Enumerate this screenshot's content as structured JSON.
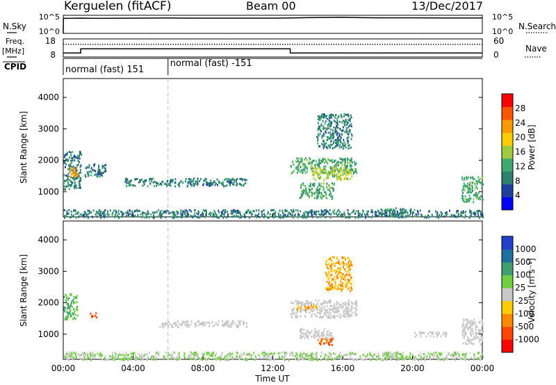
{
  "header": {
    "station": "Kerguelen (fitACF)",
    "beam": "Beam 00",
    "date": "13/Dec/2017"
  },
  "nsky_panel": {
    "left_label": "N.Sky",
    "right_label": "N.Search",
    "left_ticks": [
      "10^5",
      "10^0"
    ],
    "right_ticks": [
      "10^5",
      "10^0"
    ],
    "series": [
      {
        "key": "nsky_solid",
        "x": [
          0,
          0.01,
          0.02,
          0.03,
          0.2,
          1,
          2,
          4,
          6,
          8,
          10,
          12,
          13,
          14,
          15,
          16,
          17,
          18,
          20,
          22,
          24
        ],
        "y": [
          0,
          4.1,
          4.1,
          4.15,
          4.15,
          4.2,
          4.15,
          4.2,
          4.25,
          4.2,
          4.2,
          4.2,
          4.25,
          4.35,
          4.4,
          4.45,
          4.35,
          4.3,
          4.3,
          4.25,
          4.25
        ]
      }
    ]
  },
  "freq_panel": {
    "left_title": "Freq.",
    "left_unit": "[MHz]",
    "right_label": "Nave",
    "left_ticks": [
      "18",
      "8"
    ],
    "right_ticks": [
      "60",
      "0"
    ],
    "freq_solid": {
      "x": [
        0,
        1,
        1,
        13,
        13,
        24
      ],
      "y": [
        10.2,
        10.2,
        12.5,
        12.5,
        10.2,
        10.2
      ]
    },
    "nave_dotted": {
      "x": [
        0,
        24
      ],
      "y": [
        42,
        42
      ]
    }
  },
  "cpid_panel": {
    "label": "CPID",
    "segments": [
      {
        "start_hour": 0,
        "text": "normal (fast) 151"
      },
      {
        "start_hour": 6,
        "text": "normal (fast) -151"
      }
    ]
  },
  "x_axis": {
    "label": "Time UT",
    "range": [
      0,
      24
    ],
    "ticks": [
      0,
      4,
      8,
      12,
      16,
      20,
      24
    ],
    "tick_labels": [
      "00:00",
      "04:00",
      "08:00",
      "12:00",
      "16:00",
      "20:00",
      "00:00"
    ]
  },
  "power_panel": {
    "ylabel": "Slant Range [km]",
    "ylim": [
      200,
      4600
    ],
    "yticks": [
      1000,
      2000,
      3000,
      4000
    ],
    "colorbar_label": "Power [dB]",
    "colorbar_ticks": [
      "4",
      "8",
      "12",
      "16",
      "20",
      "24",
      "28"
    ],
    "colorbar_colors": [
      "#0000ff",
      "#1f3f9f",
      "#2f7f6f",
      "#3fa86f",
      "#9fcc3f",
      "#ffcc00",
      "#ff9900",
      "#ff5500",
      "#ff0000"
    ]
  },
  "velocity_panel": {
    "ylabel": "Slant Range [km]",
    "ylim": [
      200,
      4600
    ],
    "yticks": [
      1000,
      2000,
      3000,
      4000
    ],
    "colorbar_label": "Velocity [m s⁻¹]",
    "colorbar_ticks": [
      "1000",
      "500",
      "100",
      "25",
      "-25",
      "-100",
      "-500",
      "-1000"
    ],
    "colorbar_colors": [
      "#1f3fcc",
      "#1f6f9f",
      "#3f9f6f",
      "#6fcf3f",
      "#c8c8c8",
      "#ffcc00",
      "#ff8800",
      "#ff4400",
      "#ff0000"
    ]
  },
  "chart_data": {
    "type": "heatmap",
    "title": "Kerguelen (fitACF)",
    "xlabel": "Time UT",
    "ylabel": "Slant Range [km]",
    "xlim": [
      0,
      24
    ],
    "ylim": [
      200,
      4600
    ],
    "power_regions": [
      {
        "t0": 0.0,
        "t1": 1.0,
        "r0": 1100,
        "r1": 2300,
        "level": 8
      },
      {
        "t0": 0.3,
        "t1": 0.8,
        "r0": 1450,
        "r1": 1800,
        "level": 24
      },
      {
        "t0": 1.2,
        "t1": 2.4,
        "r0": 1500,
        "r1": 1900,
        "level": 8
      },
      {
        "t0": 3.5,
        "t1": 10.5,
        "r0": 1200,
        "r1": 1450,
        "level": 8
      },
      {
        "t0": 13.0,
        "t1": 16.8,
        "r0": 1600,
        "r1": 2100,
        "level": 12
      },
      {
        "t0": 14.2,
        "t1": 16.5,
        "r0": 1400,
        "r1": 1800,
        "level": 16
      },
      {
        "t0": 13.5,
        "t1": 15.5,
        "r0": 800,
        "r1": 1300,
        "level": 12
      },
      {
        "t0": 14.5,
        "t1": 16.5,
        "r0": 2400,
        "r1": 3500,
        "level": 8
      },
      {
        "t0": 18.0,
        "t1": 20.0,
        "r0": 250,
        "r1": 500,
        "level": 8
      },
      {
        "t0": 22.8,
        "t1": 24.0,
        "r0": 700,
        "r1": 1500,
        "level": 12
      },
      {
        "t0": 0.0,
        "t1": 24.0,
        "r0": 200,
        "r1": 450,
        "level": 8
      }
    ],
    "velocity_regions": [
      {
        "t0": 0.0,
        "t1": 0.8,
        "r0": 1500,
        "r1": 2300,
        "level": 100
      },
      {
        "t0": 1.5,
        "t1": 2.0,
        "r0": 1550,
        "r1": 1700,
        "level": -500
      },
      {
        "t0": 5.5,
        "t1": 10.5,
        "r0": 1250,
        "r1": 1450,
        "level": 0
      },
      {
        "t0": 13.0,
        "t1": 16.8,
        "r0": 1550,
        "r1": 2100,
        "level": 0
      },
      {
        "t0": 13.3,
        "t1": 14.5,
        "r0": 1800,
        "r1": 1950,
        "level": -100
      },
      {
        "t0": 14.5,
        "t1": 15.5,
        "r0": 650,
        "r1": 900,
        "level": -500
      },
      {
        "t0": 13.5,
        "t1": 15.5,
        "r0": 900,
        "r1": 1200,
        "level": 0
      },
      {
        "t0": 15.0,
        "t1": 16.5,
        "r0": 2400,
        "r1": 3500,
        "level": -100
      },
      {
        "t0": 18.3,
        "t1": 19.2,
        "r0": 300,
        "r1": 450,
        "level": 25
      },
      {
        "t0": 20.0,
        "t1": 22.0,
        "r0": 950,
        "r1": 1100,
        "level": 0
      },
      {
        "t0": 22.8,
        "t1": 24.0,
        "r0": 700,
        "r1": 1500,
        "level": 0
      },
      {
        "t0": 0.0,
        "t1": 24.0,
        "r0": 200,
        "r1": 450,
        "level": 25
      }
    ]
  }
}
